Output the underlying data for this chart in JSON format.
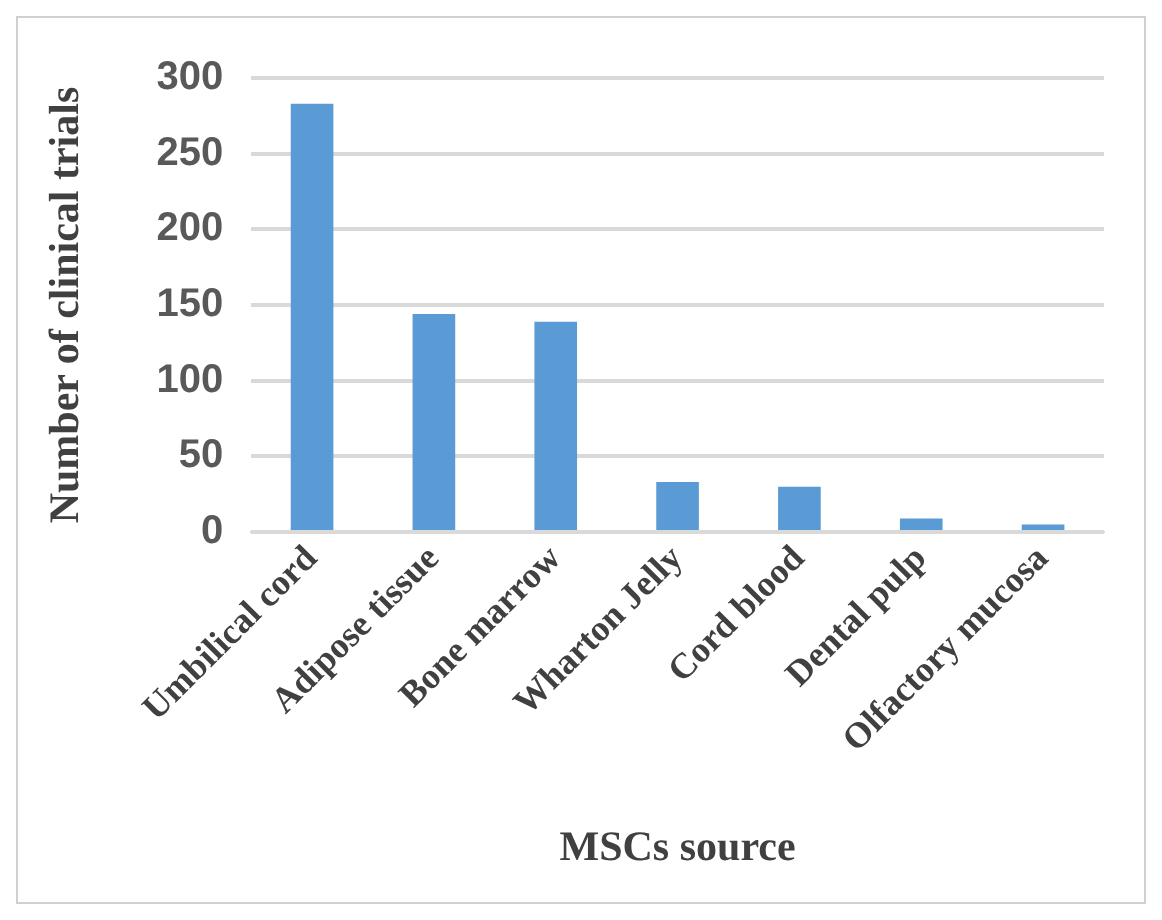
{
  "chart_data": {
    "type": "bar",
    "xlabel": "MSCs source",
    "ylabel": "Number of clinical trials",
    "categories": [
      "Umbilical cord",
      "Adipose tissue",
      "Bone marrow",
      "Wharton Jelly",
      "Cord blood",
      "Dental pulp",
      "Olfactory mucosa"
    ],
    "values": [
      283,
      144,
      139,
      33,
      30,
      9,
      5
    ],
    "color": "#5b9bd5",
    "ylim": [
      0,
      300
    ],
    "yticks": [
      0,
      50,
      100,
      150,
      200,
      250,
      300
    ],
    "grid": "y",
    "legend": false
  }
}
